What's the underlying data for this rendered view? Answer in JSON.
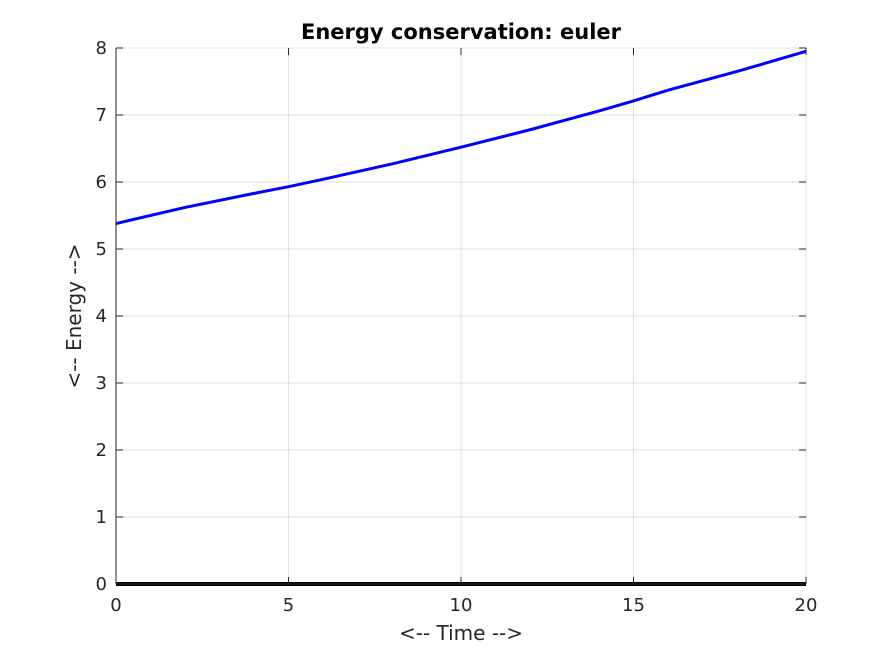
{
  "chart_data": {
    "type": "line",
    "title": "Energy conservation: euler",
    "xlabel": "<-- Time -->",
    "ylabel": "<-- Energy -->",
    "xlim": [
      0,
      20
    ],
    "ylim": [
      0,
      8
    ],
    "xticks": [
      "0",
      "5",
      "10",
      "15",
      "20"
    ],
    "yticks": [
      "0",
      "1",
      "2",
      "3",
      "4",
      "5",
      "6",
      "7",
      "8"
    ],
    "grid": true,
    "series": [
      {
        "color": "#0000ff",
        "x": [
          0,
          2,
          4,
          5,
          6,
          8,
          10,
          12,
          14,
          15,
          16,
          18,
          20
        ],
        "y": [
          5.38,
          5.62,
          5.83,
          5.93,
          6.04,
          6.27,
          6.52,
          6.78,
          7.06,
          7.21,
          7.37,
          7.65,
          7.95
        ]
      },
      {
        "color": "#000000",
        "x": [
          0,
          20
        ],
        "y": [
          0,
          0
        ]
      }
    ],
    "axis_color": "#262626",
    "grid_color": "#dfdfdf"
  }
}
